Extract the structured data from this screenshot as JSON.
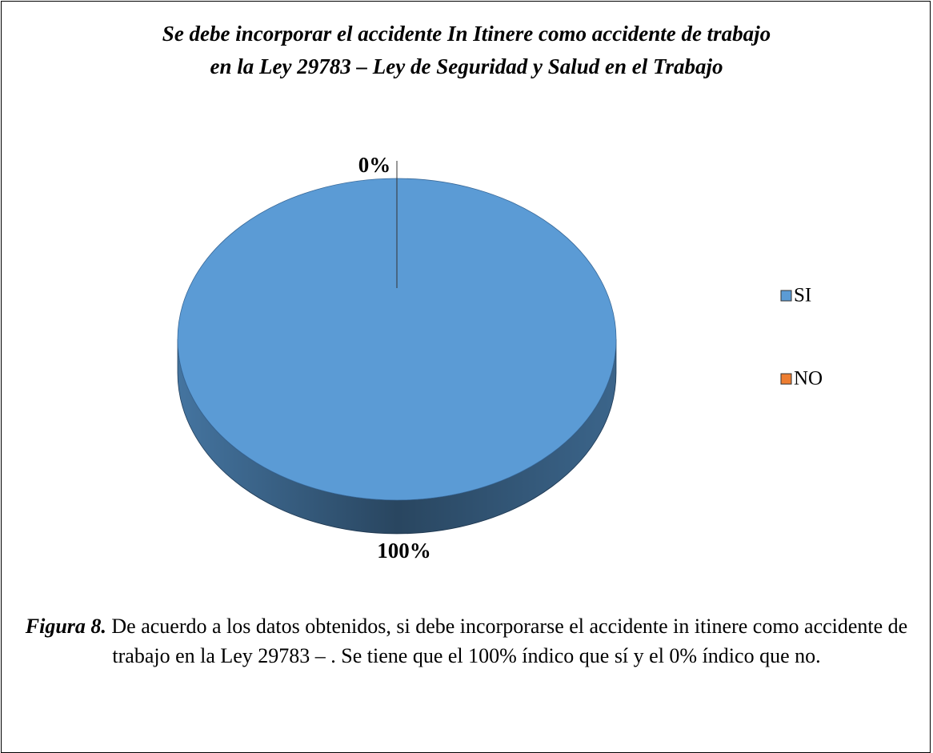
{
  "chart_data": {
    "type": "pie",
    "title": [
      "Se debe incorporar el accidente In Itinere como accidente de trabajo",
      "en la Ley 29783 – Ley de Seguridad y Salud en el Trabajo"
    ],
    "categories": [
      "SI",
      "NO"
    ],
    "values": [
      100,
      0
    ],
    "value_labels": [
      "100%",
      "0%"
    ],
    "colors": [
      "#5b9bd5",
      "#ed7d31"
    ],
    "legend": "right"
  },
  "caption": {
    "label": "Figura 8.",
    "text": "De acuerdo a los datos obtenidos, si debe incorporarse el accidente in itinere como accidente de trabajo en la Ley 29783 – . Se tiene que el 100% índico que sí y el 0% índico que no."
  }
}
